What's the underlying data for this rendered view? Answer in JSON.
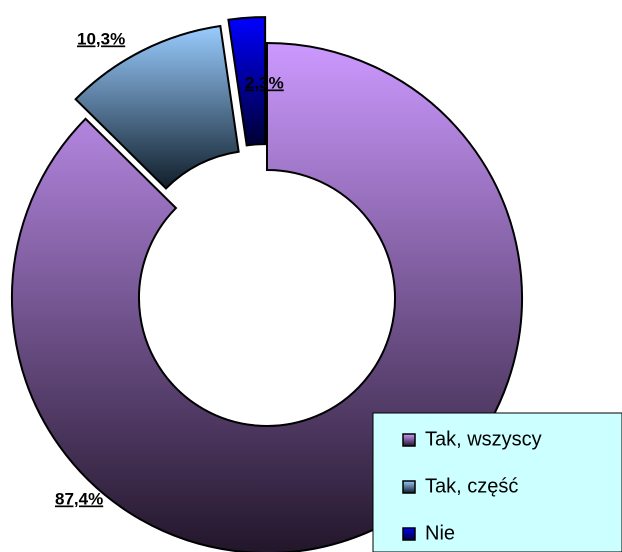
{
  "chart_data": {
    "type": "donut",
    "categories": [
      "Tak, wszyscy",
      "Tak, część",
      "Nie"
    ],
    "values": [
      87.4,
      10.3,
      2.3
    ],
    "value_labels": [
      "87,4%",
      "10,3%",
      "2,3%"
    ],
    "colors": [
      "#cc99ff",
      "#99ccff",
      "#0000ff"
    ],
    "legend": "bottom-right"
  }
}
